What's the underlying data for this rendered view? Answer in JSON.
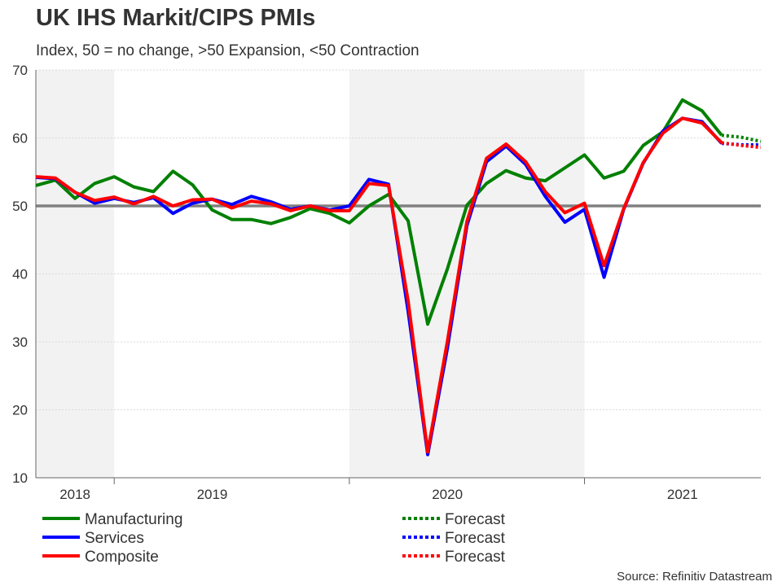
{
  "chart_data": {
    "type": "line",
    "title": "UK IHS Markit/CIPS PMIs",
    "subtitle": "Index, 50 = no change, >50 Expansion, <50 Contraction",
    "source": "Source: Refinitiv Datastream",
    "ylim": [
      10,
      70
    ],
    "yticks": [
      10,
      20,
      30,
      40,
      50,
      60,
      70
    ],
    "reference_line": 50,
    "x_index_range": [
      0,
      37
    ],
    "year_labels": [
      {
        "label": "2018",
        "center_index": 2
      },
      {
        "label": "2019",
        "center_index": 9
      },
      {
        "label": "2020",
        "center_index": 21
      },
      {
        "label": "2021",
        "center_index": 33
      }
    ],
    "year_boundaries": [
      4,
      16,
      28
    ],
    "shaded_periods": [
      [
        0,
        4
      ],
      [
        16,
        28
      ]
    ],
    "series": [
      {
        "name": "Manufacturing",
        "color": "#008000",
        "values": [
          53.0,
          53.8,
          51.1,
          53.3,
          54.3,
          52.8,
          52.1,
          55.1,
          53.1,
          49.4,
          48.0,
          48.0,
          47.4,
          48.3,
          49.6,
          48.9,
          47.5,
          50.0,
          51.7,
          47.8,
          32.6,
          40.7,
          50.1,
          53.3,
          55.2,
          54.1,
          53.7,
          55.6,
          57.5,
          54.1,
          55.1,
          58.9,
          60.9,
          65.6,
          64.0,
          60.4
        ],
        "forecast_values": [
          60.4,
          60.1,
          59.5
        ]
      },
      {
        "name": "Services",
        "color": "#0000ff",
        "values": [
          54.2,
          54.0,
          52.0,
          50.4,
          51.1,
          50.5,
          51.2,
          48.9,
          50.4,
          51.0,
          50.2,
          51.4,
          50.6,
          49.5,
          50.0,
          49.4,
          50.0,
          53.9,
          53.2,
          34.5,
          13.4,
          29.0,
          47.1,
          56.5,
          58.8,
          56.1,
          51.4,
          47.6,
          49.5,
          39.5,
          49.5,
          56.3,
          61.0,
          62.9,
          62.4,
          59.2
        ],
        "forecast_values": [
          59.2,
          59.0,
          59.0
        ]
      },
      {
        "name": "Composite",
        "color": "#ff0000",
        "values": [
          54.3,
          54.1,
          52.0,
          50.8,
          51.3,
          50.3,
          51.4,
          50.0,
          50.9,
          51.0,
          49.7,
          50.7,
          50.3,
          49.3,
          50.0,
          49.3,
          49.3,
          53.3,
          53.0,
          36.0,
          13.8,
          30.0,
          47.7,
          57.0,
          59.1,
          56.5,
          52.1,
          49.0,
          50.4,
          41.2,
          49.6,
          56.4,
          60.7,
          62.9,
          62.2,
          59.3
        ],
        "forecast_values": [
          59.3,
          58.9,
          58.6
        ]
      }
    ],
    "legend": {
      "position": "bottom",
      "items": [
        {
          "label": "Manufacturing",
          "color": "#008000",
          "style": "solid"
        },
        {
          "label": "Services",
          "color": "#0000ff",
          "style": "solid"
        },
        {
          "label": "Composite",
          "color": "#ff0000",
          "style": "solid"
        },
        {
          "label": "Forecast",
          "color": "#008000",
          "style": "dotted"
        },
        {
          "label": "Forecast",
          "color": "#0000ff",
          "style": "dotted"
        },
        {
          "label": "Forecast",
          "color": "#ff0000",
          "style": "dotted"
        }
      ]
    },
    "colors": {
      "reference_line": "#808080",
      "shade": "#f2f2f2",
      "grid": "#d9d9d9",
      "axis": "#666666"
    }
  }
}
